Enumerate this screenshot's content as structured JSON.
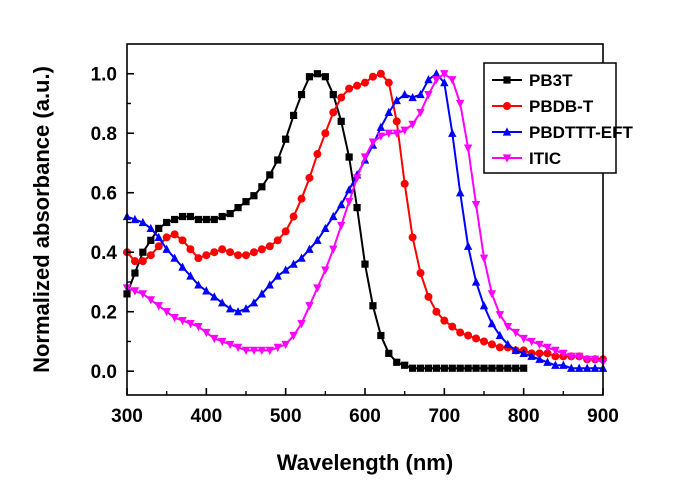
{
  "chart_data": {
    "type": "line",
    "title": "",
    "xlabel": "Wavelength (nm)",
    "ylabel": "Normalized absorbance (a.u.)",
    "xlim": [
      300,
      900
    ],
    "ylim": [
      -0.08,
      1.1
    ],
    "xticks": [
      "300",
      "400",
      "500",
      "600",
      "700",
      "800",
      "900"
    ],
    "yticks": [
      "0.0",
      "0.2",
      "0.4",
      "0.6",
      "0.8",
      "1.0"
    ],
    "legend_position": "top-right",
    "series": [
      {
        "name": "PB3T",
        "color": "#000000",
        "marker": "square",
        "points": [
          [
            300,
            0.26
          ],
          [
            310,
            0.33
          ],
          [
            320,
            0.4
          ],
          [
            330,
            0.44
          ],
          [
            340,
            0.48
          ],
          [
            350,
            0.5
          ],
          [
            360,
            0.51
          ],
          [
            370,
            0.52
          ],
          [
            380,
            0.52
          ],
          [
            390,
            0.51
          ],
          [
            400,
            0.51
          ],
          [
            410,
            0.51
          ],
          [
            420,
            0.52
          ],
          [
            430,
            0.53
          ],
          [
            440,
            0.55
          ],
          [
            450,
            0.57
          ],
          [
            460,
            0.59
          ],
          [
            470,
            0.62
          ],
          [
            480,
            0.66
          ],
          [
            490,
            0.71
          ],
          [
            500,
            0.78
          ],
          [
            510,
            0.86
          ],
          [
            520,
            0.93
          ],
          [
            530,
            0.99
          ],
          [
            540,
            1.0
          ],
          [
            550,
            0.99
          ],
          [
            560,
            0.93
          ],
          [
            570,
            0.84
          ],
          [
            580,
            0.72
          ],
          [
            590,
            0.55
          ],
          [
            600,
            0.36
          ],
          [
            610,
            0.22
          ],
          [
            620,
            0.12
          ],
          [
            630,
            0.06
          ],
          [
            640,
            0.03
          ],
          [
            650,
            0.02
          ],
          [
            660,
            0.01
          ],
          [
            670,
            0.01
          ],
          [
            680,
            0.01
          ],
          [
            690,
            0.01
          ],
          [
            700,
            0.01
          ],
          [
            710,
            0.01
          ],
          [
            720,
            0.01
          ],
          [
            730,
            0.01
          ],
          [
            740,
            0.01
          ],
          [
            750,
            0.01
          ],
          [
            760,
            0.01
          ],
          [
            770,
            0.01
          ],
          [
            780,
            0.01
          ],
          [
            790,
            0.01
          ],
          [
            800,
            0.01
          ]
        ]
      },
      {
        "name": "PBDB-T",
        "color": "#ff0000",
        "marker": "circle",
        "points": [
          [
            300,
            0.4
          ],
          [
            310,
            0.37
          ],
          [
            320,
            0.37
          ],
          [
            330,
            0.39
          ],
          [
            340,
            0.42
          ],
          [
            350,
            0.45
          ],
          [
            360,
            0.46
          ],
          [
            370,
            0.44
          ],
          [
            380,
            0.41
          ],
          [
            390,
            0.38
          ],
          [
            400,
            0.39
          ],
          [
            410,
            0.4
          ],
          [
            420,
            0.41
          ],
          [
            430,
            0.4
          ],
          [
            440,
            0.39
          ],
          [
            450,
            0.39
          ],
          [
            460,
            0.4
          ],
          [
            470,
            0.41
          ],
          [
            480,
            0.42
          ],
          [
            490,
            0.44
          ],
          [
            500,
            0.47
          ],
          [
            510,
            0.52
          ],
          [
            520,
            0.58
          ],
          [
            530,
            0.65
          ],
          [
            540,
            0.73
          ],
          [
            550,
            0.8
          ],
          [
            560,
            0.87
          ],
          [
            570,
            0.92
          ],
          [
            580,
            0.95
          ],
          [
            590,
            0.96
          ],
          [
            600,
            0.97
          ],
          [
            610,
            0.99
          ],
          [
            620,
            1.0
          ],
          [
            630,
            0.97
          ],
          [
            640,
            0.84
          ],
          [
            650,
            0.63
          ],
          [
            660,
            0.45
          ],
          [
            670,
            0.33
          ],
          [
            680,
            0.25
          ],
          [
            690,
            0.2
          ],
          [
            700,
            0.17
          ],
          [
            710,
            0.15
          ],
          [
            720,
            0.13
          ],
          [
            730,
            0.12
          ],
          [
            740,
            0.11
          ],
          [
            750,
            0.1
          ],
          [
            760,
            0.09
          ],
          [
            770,
            0.08
          ],
          [
            780,
            0.08
          ],
          [
            790,
            0.07
          ],
          [
            800,
            0.07
          ],
          [
            810,
            0.06
          ],
          [
            820,
            0.06
          ],
          [
            830,
            0.06
          ],
          [
            840,
            0.05
          ],
          [
            850,
            0.05
          ],
          [
            860,
            0.05
          ],
          [
            870,
            0.05
          ],
          [
            880,
            0.04
          ],
          [
            890,
            0.04
          ],
          [
            900,
            0.04
          ]
        ]
      },
      {
        "name": "PBDTTT-EFT",
        "color": "#0000ff",
        "marker": "triangle-up",
        "points": [
          [
            300,
            0.52
          ],
          [
            310,
            0.51
          ],
          [
            320,
            0.5
          ],
          [
            330,
            0.48
          ],
          [
            340,
            0.45
          ],
          [
            350,
            0.41
          ],
          [
            360,
            0.38
          ],
          [
            370,
            0.35
          ],
          [
            380,
            0.32
          ],
          [
            390,
            0.29
          ],
          [
            400,
            0.27
          ],
          [
            410,
            0.25
          ],
          [
            420,
            0.23
          ],
          [
            430,
            0.21
          ],
          [
            440,
            0.2
          ],
          [
            450,
            0.21
          ],
          [
            460,
            0.23
          ],
          [
            470,
            0.26
          ],
          [
            480,
            0.29
          ],
          [
            490,
            0.32
          ],
          [
            500,
            0.34
          ],
          [
            510,
            0.36
          ],
          [
            520,
            0.38
          ],
          [
            530,
            0.41
          ],
          [
            540,
            0.44
          ],
          [
            550,
            0.48
          ],
          [
            560,
            0.52
          ],
          [
            570,
            0.56
          ],
          [
            580,
            0.61
          ],
          [
            590,
            0.66
          ],
          [
            600,
            0.71
          ],
          [
            610,
            0.76
          ],
          [
            620,
            0.82
          ],
          [
            630,
            0.87
          ],
          [
            640,
            0.91
          ],
          [
            650,
            0.93
          ],
          [
            660,
            0.92
          ],
          [
            670,
            0.93
          ],
          [
            680,
            0.98
          ],
          [
            690,
            1.0
          ],
          [
            700,
            0.97
          ],
          [
            710,
            0.8
          ],
          [
            720,
            0.6
          ],
          [
            730,
            0.42
          ],
          [
            740,
            0.3
          ],
          [
            750,
            0.22
          ],
          [
            760,
            0.16
          ],
          [
            770,
            0.12
          ],
          [
            780,
            0.09
          ],
          [
            790,
            0.07
          ],
          [
            800,
            0.06
          ],
          [
            810,
            0.05
          ],
          [
            820,
            0.04
          ],
          [
            830,
            0.03
          ],
          [
            840,
            0.02
          ],
          [
            850,
            0.02
          ],
          [
            860,
            0.01
          ],
          [
            870,
            0.01
          ],
          [
            880,
            0.01
          ],
          [
            890,
            0.01
          ],
          [
            900,
            0.01
          ]
        ]
      },
      {
        "name": "ITIC",
        "color": "#ff00ff",
        "marker": "triangle-down",
        "points": [
          [
            300,
            0.28
          ],
          [
            310,
            0.27
          ],
          [
            320,
            0.26
          ],
          [
            330,
            0.24
          ],
          [
            340,
            0.22
          ],
          [
            350,
            0.2
          ],
          [
            360,
            0.18
          ],
          [
            370,
            0.17
          ],
          [
            380,
            0.16
          ],
          [
            390,
            0.15
          ],
          [
            400,
            0.13
          ],
          [
            410,
            0.11
          ],
          [
            420,
            0.1
          ],
          [
            430,
            0.09
          ],
          [
            440,
            0.08
          ],
          [
            450,
            0.07
          ],
          [
            460,
            0.07
          ],
          [
            470,
            0.07
          ],
          [
            480,
            0.07
          ],
          [
            490,
            0.08
          ],
          [
            500,
            0.09
          ],
          [
            510,
            0.12
          ],
          [
            520,
            0.16
          ],
          [
            530,
            0.22
          ],
          [
            540,
            0.28
          ],
          [
            550,
            0.34
          ],
          [
            560,
            0.41
          ],
          [
            570,
            0.49
          ],
          [
            580,
            0.57
          ],
          [
            590,
            0.65
          ],
          [
            600,
            0.72
          ],
          [
            610,
            0.77
          ],
          [
            620,
            0.79
          ],
          [
            630,
            0.8
          ],
          [
            640,
            0.8
          ],
          [
            650,
            0.81
          ],
          [
            660,
            0.83
          ],
          [
            670,
            0.87
          ],
          [
            680,
            0.93
          ],
          [
            690,
            0.98
          ],
          [
            700,
            1.0
          ],
          [
            710,
            0.98
          ],
          [
            720,
            0.9
          ],
          [
            730,
            0.75
          ],
          [
            740,
            0.56
          ],
          [
            750,
            0.38
          ],
          [
            760,
            0.26
          ],
          [
            770,
            0.19
          ],
          [
            780,
            0.15
          ],
          [
            790,
            0.13
          ],
          [
            800,
            0.11
          ],
          [
            810,
            0.1
          ],
          [
            820,
            0.09
          ],
          [
            830,
            0.08
          ],
          [
            840,
            0.07
          ],
          [
            850,
            0.06
          ],
          [
            860,
            0.05
          ],
          [
            870,
            0.05
          ],
          [
            880,
            0.04
          ],
          [
            890,
            0.04
          ],
          [
            900,
            0.03
          ]
        ]
      }
    ]
  }
}
